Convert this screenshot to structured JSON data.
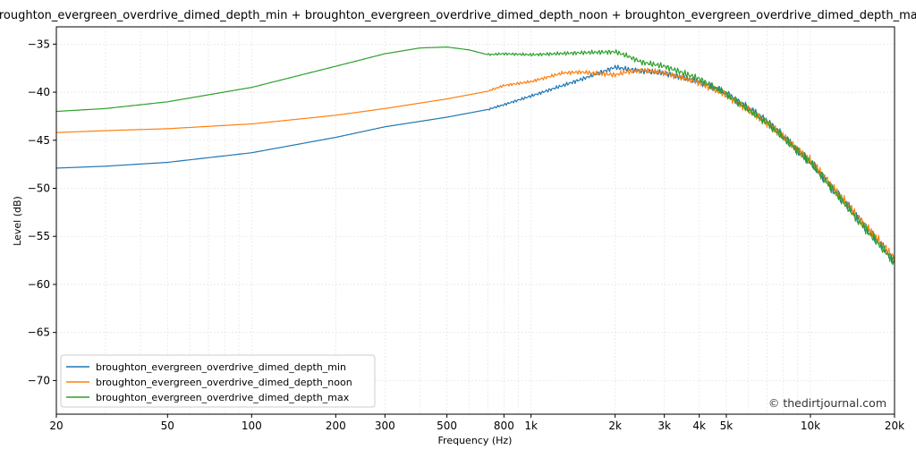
{
  "chart_data": {
    "type": "line",
    "title": "broughton_evergreen_overdrive_dimed_depth_min + broughton_evergreen_overdrive_dimed_depth_noon + broughton_evergreen_overdrive_dimed_depth_max",
    "xlabel": "Frequency (Hz)",
    "ylabel": "Level (dB)",
    "xscale": "log",
    "xlim": [
      20,
      20000
    ],
    "ylim": [
      -73.5,
      -33.2
    ],
    "grid": true,
    "legend_position": "lower-left",
    "x_ticks": [
      {
        "value": 20,
        "label": "20"
      },
      {
        "value": 50,
        "label": "50"
      },
      {
        "value": 100,
        "label": "100"
      },
      {
        "value": 200,
        "label": "200"
      },
      {
        "value": 300,
        "label": "300"
      },
      {
        "value": 500,
        "label": "500"
      },
      {
        "value": 800,
        "label": "800"
      },
      {
        "value": 1000,
        "label": "1k"
      },
      {
        "value": 2000,
        "label": "2k"
      },
      {
        "value": 3000,
        "label": "3k"
      },
      {
        "value": 4000,
        "label": "4k"
      },
      {
        "value": 5000,
        "label": "5k"
      },
      {
        "value": 10000,
        "label": "10k"
      },
      {
        "value": 20000,
        "label": "20k"
      }
    ],
    "y_ticks": [
      {
        "value": -35,
        "label": "−35"
      },
      {
        "value": -40,
        "label": "−40"
      },
      {
        "value": -45,
        "label": "−45"
      },
      {
        "value": -50,
        "label": "−50"
      },
      {
        "value": -55,
        "label": "−55"
      },
      {
        "value": -60,
        "label": "−60"
      },
      {
        "value": -65,
        "label": "−65"
      },
      {
        "value": -70,
        "label": "−70"
      }
    ],
    "series": [
      {
        "name": "broughton_evergreen_overdrive_dimed_depth_min",
        "color": "#1f77b4",
        "points": [
          [
            20,
            -47.9
          ],
          [
            30,
            -47.7
          ],
          [
            50,
            -47.3
          ],
          [
            100,
            -46.3
          ],
          [
            200,
            -44.7
          ],
          [
            300,
            -43.6
          ],
          [
            500,
            -42.6
          ],
          [
            700,
            -41.8
          ],
          [
            800,
            -41.3
          ],
          [
            1000,
            -40.4
          ],
          [
            1500,
            -38.7
          ],
          [
            2000,
            -37.4
          ],
          [
            2200,
            -37.6
          ],
          [
            2500,
            -37.8
          ],
          [
            3000,
            -38.0
          ],
          [
            4000,
            -38.9
          ],
          [
            5000,
            -40.1
          ],
          [
            7000,
            -43.0
          ],
          [
            10000,
            -47.3
          ],
          [
            15000,
            -53.3
          ],
          [
            20000,
            -57.6
          ]
        ]
      },
      {
        "name": "broughton_evergreen_overdrive_dimed_depth_noon",
        "color": "#ff7f0e",
        "points": [
          [
            20,
            -44.2
          ],
          [
            30,
            -44.0
          ],
          [
            50,
            -43.8
          ],
          [
            100,
            -43.3
          ],
          [
            200,
            -42.4
          ],
          [
            300,
            -41.7
          ],
          [
            500,
            -40.7
          ],
          [
            700,
            -39.9
          ],
          [
            800,
            -39.3
          ],
          [
            1000,
            -38.9
          ],
          [
            1300,
            -38.0
          ],
          [
            1500,
            -37.9
          ],
          [
            2000,
            -38.2
          ],
          [
            2200,
            -37.9
          ],
          [
            2500,
            -37.7
          ],
          [
            3000,
            -38.0
          ],
          [
            4000,
            -39.0
          ],
          [
            5000,
            -40.3
          ],
          [
            7000,
            -43.2
          ],
          [
            10000,
            -47.1
          ],
          [
            15000,
            -53.2
          ],
          [
            20000,
            -57.3
          ]
        ]
      },
      {
        "name": "broughton_evergreen_overdrive_dimed_depth_max",
        "color": "#2ca02c",
        "points": [
          [
            20,
            -42.0
          ],
          [
            30,
            -41.7
          ],
          [
            50,
            -41.0
          ],
          [
            100,
            -39.5
          ],
          [
            200,
            -37.3
          ],
          [
            300,
            -36.0
          ],
          [
            400,
            -35.4
          ],
          [
            500,
            -35.3
          ],
          [
            600,
            -35.6
          ],
          [
            700,
            -36.1
          ],
          [
            800,
            -36.0
          ],
          [
            1000,
            -36.1
          ],
          [
            1500,
            -35.9
          ],
          [
            2000,
            -35.8
          ],
          [
            2200,
            -36.2
          ],
          [
            2500,
            -36.9
          ],
          [
            3000,
            -37.3
          ],
          [
            4000,
            -38.6
          ],
          [
            5000,
            -40.2
          ],
          [
            7000,
            -43.2
          ],
          [
            10000,
            -47.3
          ],
          [
            15000,
            -53.5
          ],
          [
            20000,
            -57.7
          ]
        ]
      }
    ],
    "watermark": "© thedirtjournal.com"
  }
}
